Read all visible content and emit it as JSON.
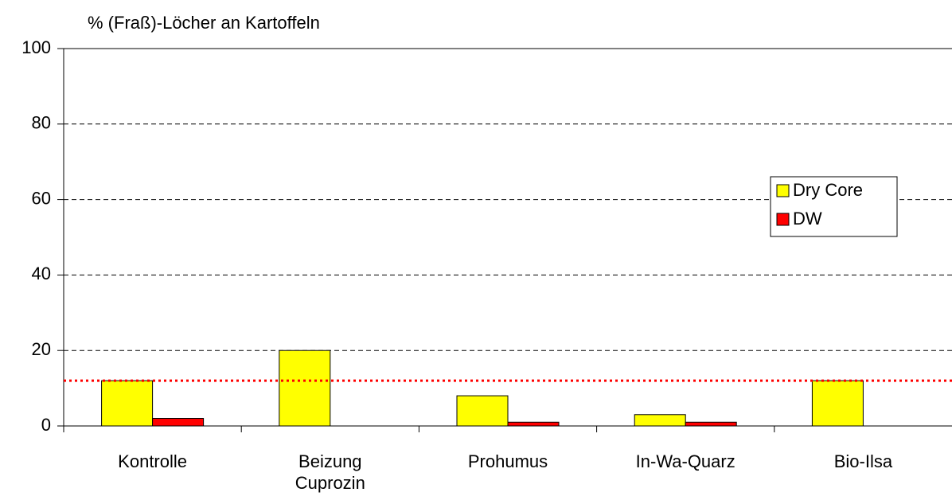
{
  "chart_data": {
    "type": "bar",
    "y_axis_label": "% (Fraß)-Löcher an Kartoffeln",
    "categories": [
      "Kontrolle",
      "Beizung Cuprozin",
      "Prohumus",
      "In-Wa-Quarz",
      "Bio-Ilsa"
    ],
    "series": [
      {
        "name": "Dry Core",
        "color": "#ffff00",
        "values": [
          12,
          20,
          8,
          3,
          12
        ]
      },
      {
        "name": "DW",
        "color": "#ff0000",
        "values": [
          2,
          0,
          1,
          1,
          0
        ]
      }
    ],
    "ylim": [
      0,
      100
    ],
    "yticks": [
      0,
      20,
      40,
      60,
      80,
      100
    ],
    "grid": true,
    "reference_line": {
      "value": 12,
      "color": "#ff0000"
    },
    "legend": "right"
  }
}
